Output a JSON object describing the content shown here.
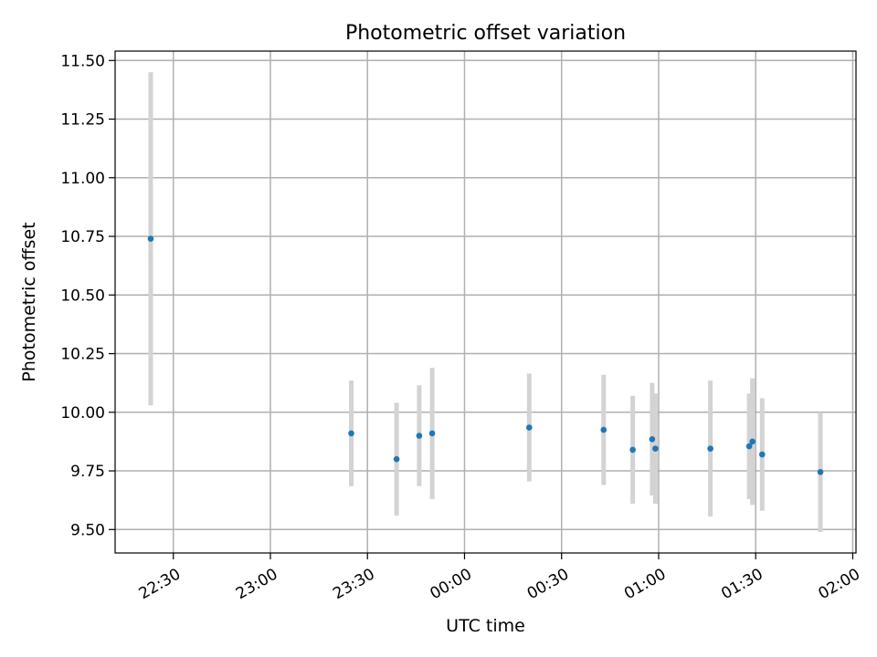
{
  "chart_data": {
    "type": "scatter",
    "title": "Photometric offset variation",
    "xlabel": "UTC time",
    "ylabel": "Photometric offset",
    "x_axis_type": "time",
    "xlim": [
      "22:12",
      "02:01"
    ],
    "ylim": [
      9.4,
      11.54
    ],
    "grid": true,
    "x_ticks": [
      "22:30",
      "23:00",
      "23:30",
      "00:00",
      "00:30",
      "01:00",
      "01:30",
      "02:00"
    ],
    "y_ticks": [
      "9.50",
      "9.75",
      "10.00",
      "10.25",
      "10.50",
      "10.75",
      "11.00",
      "11.25",
      "11.50"
    ],
    "series": [
      {
        "marker_color": "#1f77b4",
        "errorbar_color": "#d3d3d3",
        "points": [
          {
            "x": "22:23",
            "y": 10.74,
            "err": 0.71
          },
          {
            "x": "23:25",
            "y": 9.91,
            "err": 0.225
          },
          {
            "x": "23:39",
            "y": 9.8,
            "err": 0.24
          },
          {
            "x": "23:46",
            "y": 9.9,
            "err": 0.215
          },
          {
            "x": "23:50",
            "y": 9.91,
            "err": 0.28
          },
          {
            "x": "00:20",
            "y": 9.935,
            "err": 0.23
          },
          {
            "x": "00:43",
            "y": 9.925,
            "err": 0.235
          },
          {
            "x": "00:52",
            "y": 9.84,
            "err": 0.23
          },
          {
            "x": "00:58",
            "y": 9.885,
            "err": 0.24
          },
          {
            "x": "00:59",
            "y": 9.845,
            "err": 0.235
          },
          {
            "x": "01:16",
            "y": 9.845,
            "err": 0.29
          },
          {
            "x": "01:28",
            "y": 9.855,
            "err": 0.225
          },
          {
            "x": "01:29",
            "y": 9.875,
            "err": 0.27
          },
          {
            "x": "01:32",
            "y": 9.82,
            "err": 0.24
          },
          {
            "x": "01:50",
            "y": 9.745,
            "err": 0.255
          }
        ]
      }
    ]
  }
}
